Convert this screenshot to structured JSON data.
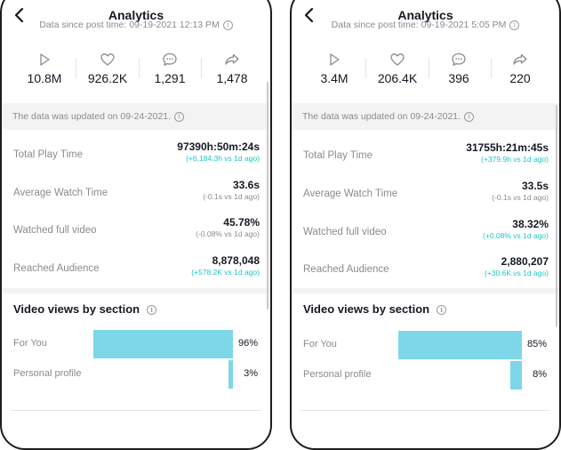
{
  "screens": [
    {
      "title": "Analytics",
      "data_since": "Data since post time: 09-19-2021 12:13 PM",
      "metrics": {
        "views": "10.8M",
        "likes": "926.2K",
        "comments": "1,291",
        "shares": "1,478"
      },
      "updated": "The data was updated on 09-24-2021.",
      "stats": {
        "total_play_time": {
          "label": "Total Play Time",
          "value": "97390h:50m:24s",
          "delta": "(+6,184.3h vs 1d ago)"
        },
        "average_watch_time": {
          "label": "Average Watch Time",
          "value": "33.6s",
          "delta": "(-0.1s vs 1d ago)"
        },
        "watched_full_video": {
          "label": "Watched full video",
          "value": "45.78%",
          "delta": "(-0.08% vs 1d ago)"
        },
        "reached_audience": {
          "label": "Reached Audience",
          "value": "8,878,048",
          "delta": "(+578.2K vs 1d ago)"
        }
      },
      "section_title": "Video views by section",
      "sections": [
        {
          "label": "For You",
          "percent": "96%",
          "value": 96
        },
        {
          "label": "Personal profile",
          "percent": "3%",
          "value": 3
        }
      ]
    },
    {
      "title": "Analytics",
      "data_since": "Data since post time: 09-19-2021 5:05 PM",
      "metrics": {
        "views": "3.4M",
        "likes": "206.4K",
        "comments": "396",
        "shares": "220"
      },
      "updated": "The data was updated on 09-24-2021.",
      "stats": {
        "total_play_time": {
          "label": "Total Play Time",
          "value": "31755h:21m:45s",
          "delta": "(+379.9h vs 1d ago)"
        },
        "average_watch_time": {
          "label": "Average Watch Time",
          "value": "33.5s",
          "delta": "(-0.1s vs 1d ago)"
        },
        "watched_full_video": {
          "label": "Watched full video",
          "value": "38.32%",
          "delta": "(+0.08% vs 1d ago)"
        },
        "reached_audience": {
          "label": "Reached Audience",
          "value": "2,880,207",
          "delta": "(+30.6K vs 1d ago)"
        }
      },
      "section_title": "Video views by section",
      "sections": [
        {
          "label": "For You",
          "percent": "85%",
          "value": 85
        },
        {
          "label": "Personal profile",
          "percent": "8%",
          "value": 8
        }
      ]
    }
  ],
  "colors": {
    "bar": "#7dd7e8",
    "positive_delta": "#20c5c5",
    "neutral_delta": "#8a8b91"
  }
}
